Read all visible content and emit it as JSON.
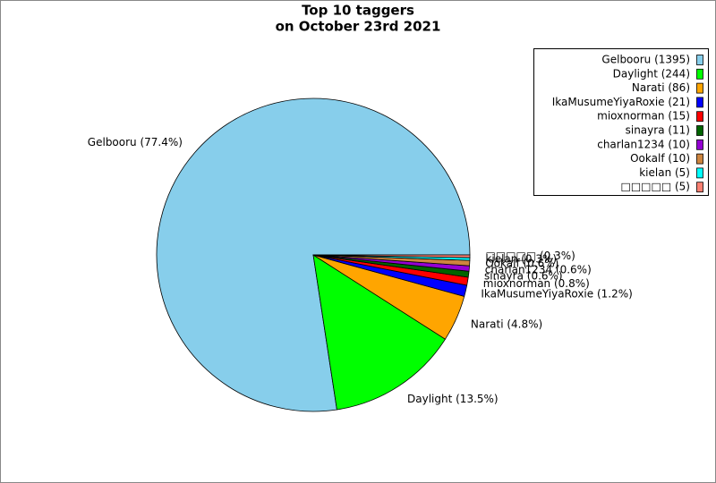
{
  "chart_data": {
    "type": "pie",
    "title": [
      "Top 10 taggers",
      "on October 23rd 2021"
    ],
    "categories": [
      "Gelbooru",
      "Daylight",
      "Narati",
      "IkaMusumeYiyaRoxie",
      "mioxnorman",
      "sinayra",
      "charlan1234",
      "Ookalf",
      "kielan",
      "□□□□□"
    ],
    "values": [
      1395,
      244,
      86,
      21,
      15,
      11,
      10,
      10,
      5,
      5
    ],
    "value_labels": [
      "Gelbooru (1395)",
      "Daylight (244)",
      "Narati (86)",
      "IkaMusumeYiyaRoxie (21)",
      "mioxnorman (15)",
      "sinayra (11)",
      "charlan1234 (10)",
      "Ookalf (10)",
      "kielan (5)",
      "□□□□□ (5)"
    ],
    "slice_labels": [
      "Gelbooru (77.4%)",
      "Daylight (13.5%)",
      "Narati (4.8%)",
      "IkaMusumeYiyaRoxie (1.2%)",
      "mioxnorman (0.8%)",
      "sinayra (0.6%)",
      "charlan1234 (0.6%)",
      "Ookalf (0.6%)",
      "kielan (0.3%)",
      "□□□□□ (0.3%)"
    ],
    "colors": [
      "#87ceeb",
      "#00ff00",
      "#ffa500",
      "#0000ff",
      "#ff0000",
      "#006400",
      "#9400d3",
      "#cd853f",
      "#00ffff",
      "#fa8072"
    ],
    "legend": "upper right"
  }
}
